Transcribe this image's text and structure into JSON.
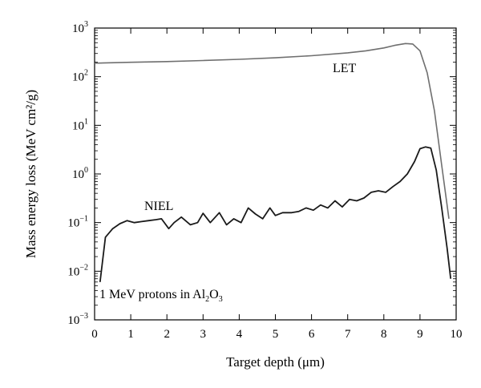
{
  "chart_data": {
    "type": "line",
    "xlabel": "Target depth (μm)",
    "ylabel": "Mass energy loss (MeV cm²/g)",
    "xlim": [
      0,
      10
    ],
    "ylim": [
      0.001,
      1000
    ],
    "yscale": "log",
    "grid": false,
    "x_ticks": [
      0,
      1,
      2,
      3,
      4,
      5,
      6,
      7,
      8,
      9,
      10
    ],
    "y_ticks": [
      {
        "value": 0.001,
        "base": "10",
        "exp": "−3"
      },
      {
        "value": 0.01,
        "base": "10",
        "exp": "−2"
      },
      {
        "value": 0.1,
        "base": "10",
        "exp": "−1"
      },
      {
        "value": 1,
        "base": "10",
        "exp": "0"
      },
      {
        "value": 10,
        "base": "10",
        "exp": "1"
      },
      {
        "value": 100,
        "base": "10",
        "exp": "2"
      },
      {
        "value": 1000,
        "base": "10",
        "exp": "3"
      }
    ],
    "annotation": {
      "prefix": "1 MeV protons in Al",
      "sub1": "2",
      "mid": "O",
      "sub2": "3"
    },
    "series": [
      {
        "name": "LET",
        "color": "#6f6f6f",
        "x": [
          0,
          1,
          2,
          3,
          4,
          5,
          6,
          7,
          7.5,
          8,
          8.3,
          8.6,
          8.8,
          9.0,
          9.2,
          9.4,
          9.6,
          9.8
        ],
        "y": [
          190,
          198,
          205,
          215,
          228,
          245,
          270,
          310,
          340,
          390,
          440,
          480,
          470,
          340,
          120,
          20,
          1.5,
          0.12
        ]
      },
      {
        "name": "NIEL",
        "color": "#1a1a1a",
        "x": [
          0.15,
          0.3,
          0.5,
          0.7,
          0.9,
          1.1,
          1.3,
          1.5,
          1.7,
          1.85,
          2.05,
          2.2,
          2.4,
          2.65,
          2.85,
          3.0,
          3.2,
          3.45,
          3.65,
          3.85,
          4.05,
          4.25,
          4.45,
          4.65,
          4.85,
          5.0,
          5.2,
          5.45,
          5.65,
          5.85,
          6.05,
          6.25,
          6.45,
          6.65,
          6.85,
          7.05,
          7.25,
          7.45,
          7.65,
          7.85,
          8.05,
          8.25,
          8.45,
          8.65,
          8.85,
          9.0,
          9.15,
          9.3,
          9.45,
          9.6,
          9.75,
          9.85
        ],
        "y": [
          0.006,
          0.05,
          0.075,
          0.095,
          0.11,
          0.1,
          0.105,
          0.11,
          0.115,
          0.12,
          0.075,
          0.1,
          0.13,
          0.09,
          0.1,
          0.155,
          0.1,
          0.16,
          0.09,
          0.12,
          0.1,
          0.2,
          0.15,
          0.12,
          0.2,
          0.14,
          0.16,
          0.16,
          0.17,
          0.2,
          0.18,
          0.23,
          0.2,
          0.28,
          0.21,
          0.3,
          0.28,
          0.32,
          0.42,
          0.45,
          0.42,
          0.55,
          0.7,
          1.0,
          1.8,
          3.3,
          3.6,
          3.4,
          1.2,
          0.2,
          0.03,
          0.007
        ]
      }
    ]
  }
}
